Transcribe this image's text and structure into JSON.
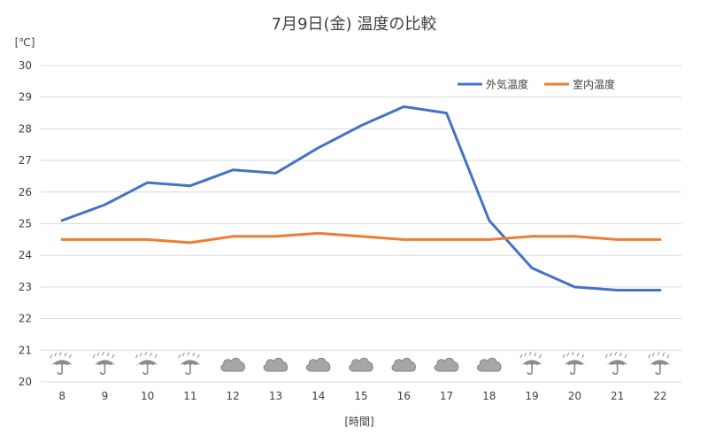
{
  "chart_data": {
    "type": "line",
    "title": "7月9日(金) 温度の比較",
    "ylabel": "[℃]",
    "xlabel": "[時間]",
    "categories": [
      "8",
      "9",
      "10",
      "11",
      "12",
      "13",
      "14",
      "15",
      "16",
      "17",
      "18",
      "19",
      "20",
      "21",
      "22"
    ],
    "ylim": [
      20,
      30
    ],
    "yticks": [
      "20",
      "21",
      "22",
      "23",
      "24",
      "25",
      "26",
      "27",
      "28",
      "29",
      "30"
    ],
    "grid": true,
    "legend_position": "top-right",
    "series": [
      {
        "name": "外気温度",
        "color": "#4472C4",
        "values": [
          25.1,
          25.6,
          26.3,
          26.2,
          26.7,
          26.6,
          27.4,
          28.1,
          28.7,
          28.5,
          25.1,
          23.6,
          23.0,
          22.9,
          22.9
        ]
      },
      {
        "name": "室内温度",
        "color": "#ED7D31",
        "values": [
          24.5,
          24.5,
          24.5,
          24.4,
          24.6,
          24.6,
          24.7,
          24.6,
          24.5,
          24.5,
          24.5,
          24.6,
          24.6,
          24.5,
          24.5
        ]
      }
    ],
    "weather_icons": [
      "umbrella-rain-icon",
      "umbrella-rain-icon",
      "umbrella-rain-icon",
      "umbrella-rain-icon",
      "cloud-icon",
      "cloud-icon",
      "cloud-icon",
      "cloud-icon",
      "cloud-icon",
      "cloud-icon",
      "cloud-icon",
      "umbrella-rain-icon",
      "umbrella-rain-icon",
      "umbrella-rain-icon",
      "umbrella-rain-icon"
    ]
  }
}
